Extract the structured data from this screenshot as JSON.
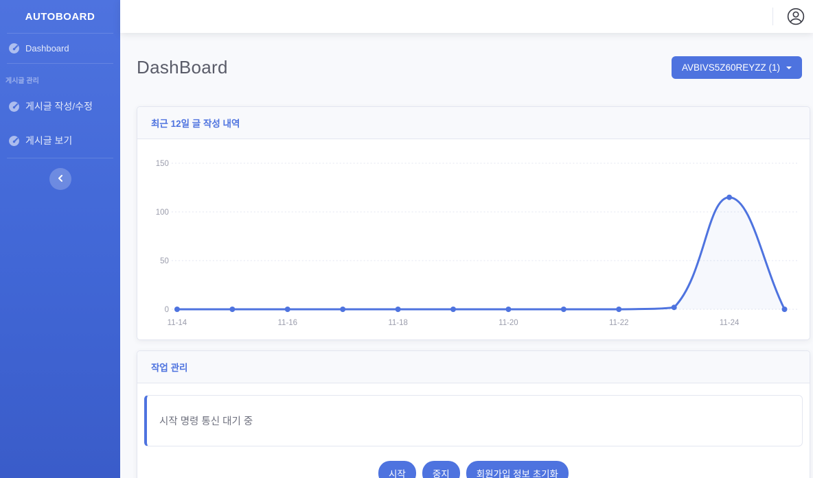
{
  "colors": {
    "primary": "#4e73df",
    "sidebar_gradient_top": "#4e73df",
    "sidebar_gradient_bottom": "#3a5cc9",
    "page_background": "#f8f9fc",
    "card_border": "#e3e6f0",
    "title_text": "#5a5c69",
    "muted_text": "#858796"
  },
  "sidebar": {
    "brand": "AUTOBOARD",
    "items": [
      {
        "label": "Dashboard",
        "icon": "tachometer-icon"
      }
    ],
    "section": {
      "heading": "게시글 관리",
      "items": [
        {
          "label": "게시글 작성/수정",
          "icon": "tachometer-icon"
        },
        {
          "label": "게시글 보기",
          "icon": "tachometer-icon"
        }
      ]
    }
  },
  "topbar": {
    "user_icon": "user-circle-icon"
  },
  "page": {
    "title": "DashBoard",
    "account_dropdown": {
      "label": "AVBIVS5Z60REYZZ (1)"
    }
  },
  "cards": {
    "chart_card": {
      "title": "최근 12일 글 작성 내역"
    },
    "task_card": {
      "title": "작업 관리",
      "status_message": "시작 명령 통신 대기 중",
      "buttons": [
        "시작",
        "중지",
        "회원가입 정보 초기화"
      ]
    }
  },
  "chart_data": {
    "type": "line",
    "title": "최근 12일 글 작성 내역",
    "x": [
      "11-14",
      "11-15",
      "11-16",
      "11-17",
      "11-18",
      "11-19",
      "11-20",
      "11-21",
      "11-22",
      "11-23",
      "11-24",
      "11-25"
    ],
    "values": [
      0,
      0,
      0,
      0,
      0,
      0,
      0,
      0,
      0,
      2,
      115,
      0
    ],
    "x_tick_labels": [
      "11-14",
      "11-16",
      "11-18",
      "11-20",
      "11-22",
      "11-24"
    ],
    "x_tick_every": 2,
    "y_ticks": [
      0,
      50,
      100,
      150
    ],
    "ylim": [
      0,
      150
    ],
    "xlabel": "",
    "ylabel": "",
    "legend": "none",
    "grid": "horizontal-dotted",
    "grid_color": "#e3e6f0",
    "tick_color": "#9b9dac",
    "line_color": "#4e73df",
    "point_radius": 4,
    "line_width": 3,
    "smooth": true,
    "fill_color": "rgba(78,115,223,0.05)"
  }
}
